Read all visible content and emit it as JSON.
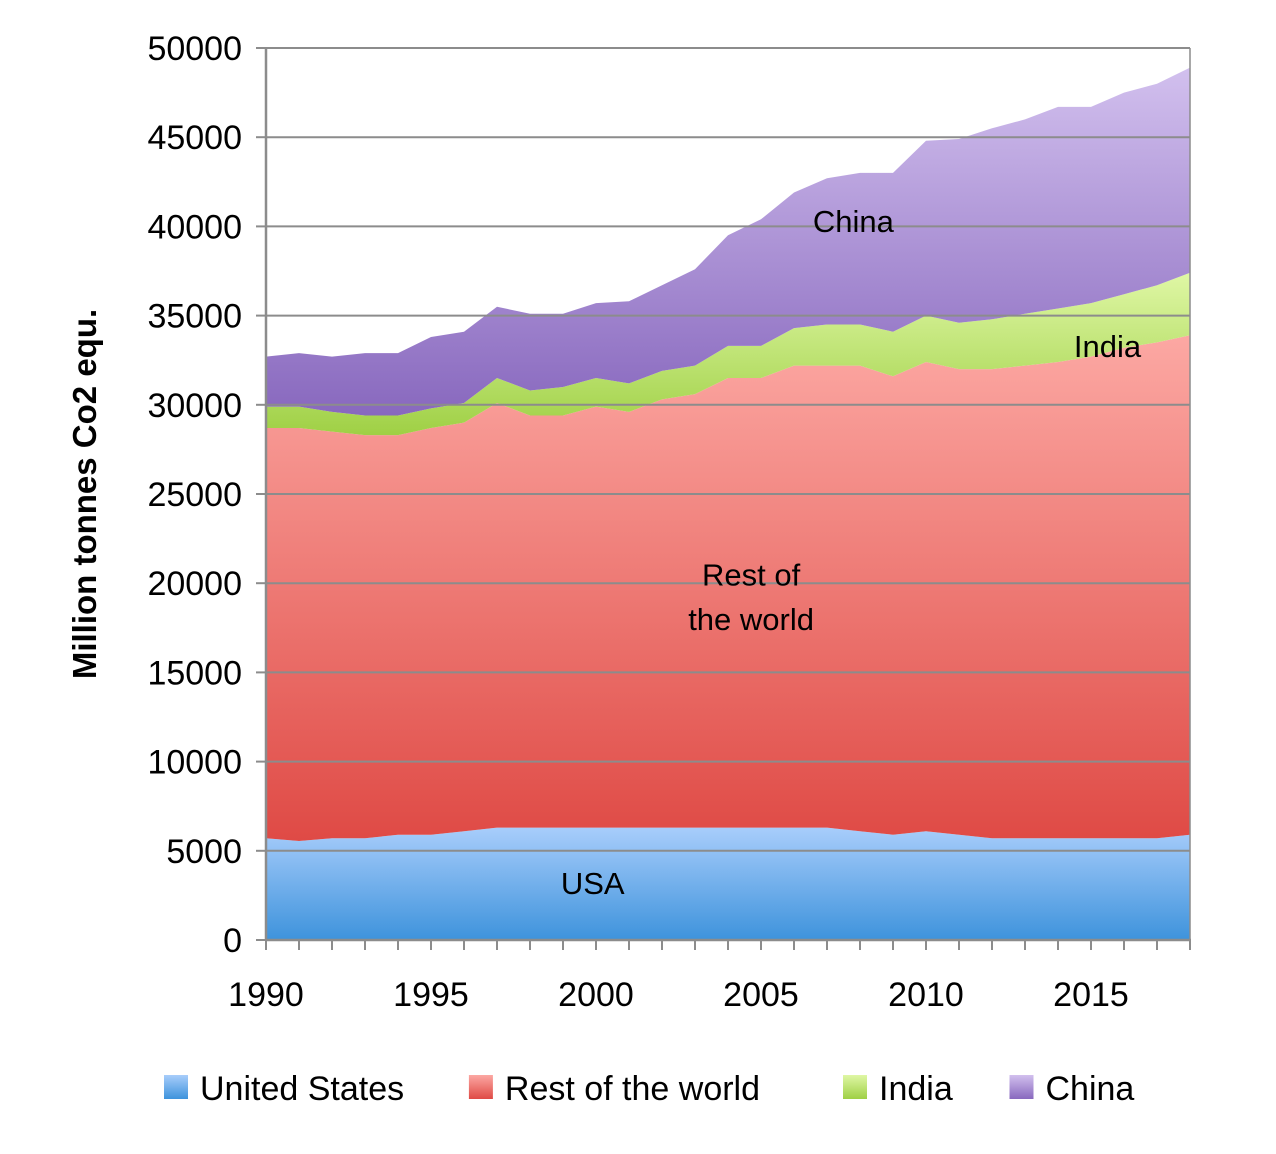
{
  "chart_data": {
    "type": "area",
    "stacked": true,
    "title": "",
    "xlabel": "",
    "ylabel": "Million tonnes Co2 equ.",
    "xlim": [
      1990,
      2018
    ],
    "ylim": [
      0,
      50000
    ],
    "y_ticks": [
      "0",
      "5000",
      "10000",
      "15000",
      "20000",
      "25000",
      "30000",
      "35000",
      "40000",
      "45000",
      "50000"
    ],
    "x_ticks": [
      "1990",
      "1995",
      "2000",
      "2005",
      "2010",
      "2015"
    ],
    "grid": "horizontal",
    "legend_position": "bottom",
    "x": [
      1990,
      1991,
      1992,
      1993,
      1994,
      1995,
      1996,
      1997,
      1998,
      1999,
      2000,
      2001,
      2002,
      2003,
      2004,
      2005,
      2006,
      2007,
      2008,
      2009,
      2010,
      2011,
      2012,
      2013,
      2014,
      2015,
      2016,
      2017,
      2018
    ],
    "series": [
      {
        "name": "United States",
        "color_top": "#a8cdfb",
        "color_bottom": "#3e93dc",
        "values": [
          5700,
          5550,
          5700,
          5700,
          5900,
          5900,
          6100,
          6300,
          6300,
          6300,
          6300,
          6300,
          6300,
          6300,
          6300,
          6300,
          6300,
          6300,
          6100,
          5900,
          6100,
          5900,
          5700,
          5700,
          5700,
          5700,
          5700,
          5700,
          5900
        ]
      },
      {
        "name": "Rest of the world",
        "color_top": "#fca8a3",
        "color_bottom": "#df4a45",
        "values": [
          23000,
          23150,
          22800,
          22600,
          22400,
          22800,
          22900,
          23800,
          23100,
          23100,
          23600,
          23300,
          24000,
          24300,
          25200,
          25200,
          25900,
          25900,
          26100,
          25700,
          26300,
          26100,
          26300,
          26500,
          26700,
          27000,
          27500,
          27800,
          28000
        ]
      },
      {
        "name": "India",
        "color_top": "#dff7a5",
        "color_bottom": "#9fd045",
        "values": [
          1200,
          1200,
          1100,
          1100,
          1100,
          1100,
          1100,
          1400,
          1400,
          1600,
          1600,
          1600,
          1600,
          1600,
          1800,
          1800,
          2100,
          2300,
          2300,
          2500,
          2600,
          2600,
          2800,
          2900,
          3000,
          3000,
          3000,
          3200,
          3500
        ]
      },
      {
        "name": "China",
        "color_top": "#d2c0ee",
        "color_bottom": "#8868be",
        "values": [
          2800,
          3000,
          3100,
          3500,
          3500,
          4000,
          4000,
          4000,
          4300,
          4100,
          4200,
          4600,
          4800,
          5400,
          6200,
          7100,
          7600,
          8200,
          8500,
          8900,
          9800,
          10300,
          10700,
          10900,
          11300,
          11000,
          11300,
          11300,
          11500
        ]
      }
    ],
    "annotations": [
      {
        "text": "China",
        "series": "China",
        "x": 2007.8,
        "y": 40300
      },
      {
        "text": "India",
        "series": "India",
        "x": 2015.5,
        "y": 33300
      },
      {
        "text": "Rest of",
        "series": "Rest of the world",
        "x": 2004.7,
        "y": 20500
      },
      {
        "text": "the world",
        "series": "Rest of the world",
        "x": 2004.7,
        "y": 18000
      },
      {
        "text": "USA",
        "series": "United States",
        "x": 1999.9,
        "y": 3200
      }
    ]
  }
}
